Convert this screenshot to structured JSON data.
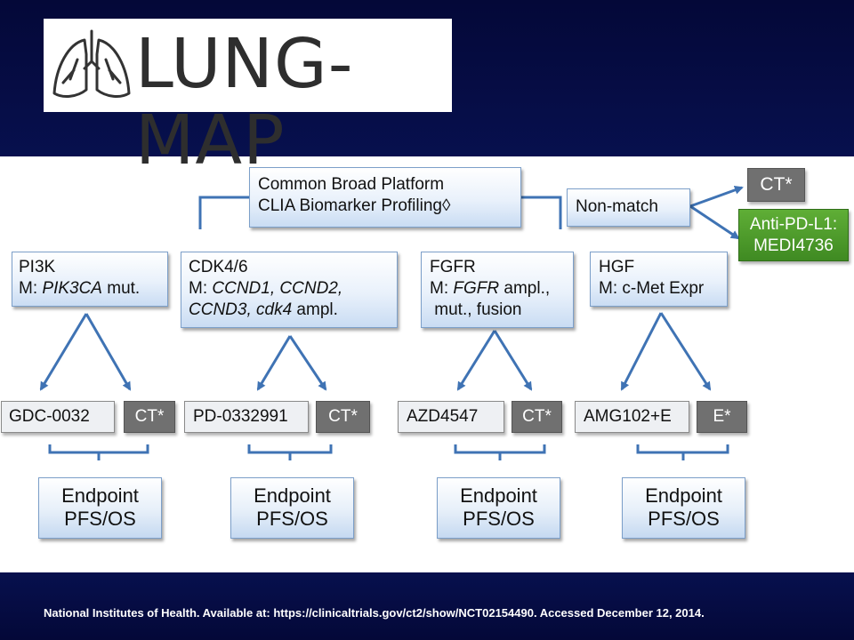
{
  "logo": {
    "text": "LUNG-MAP"
  },
  "platform": {
    "line1": "Common  Broad Platform",
    "line2": "CLIA Biomarker Profiling◊"
  },
  "nonmatch": {
    "label": "Non-match",
    "ct": "CT*",
    "anti_line1": "Anti-PD-L1:",
    "anti_line2": "MEDI4736"
  },
  "arms": [
    {
      "target": "PI3K",
      "m_prefix": "M: ",
      "m_gene": "PIK3CA",
      "m_suffix": " mut."
    },
    {
      "target": "CDK4/6",
      "m_prefix": "M: ",
      "m_genes_line1": "CCND1, CCND2,",
      "m_genes_line2a": "CCND3, cdk4",
      "m_line2_suffix": " ampl."
    },
    {
      "target": "FGFR",
      "m_prefix": "M: ",
      "m_gene": "FGFR",
      "m_suffix": " ampl.,",
      "line3": " mut., fusion"
    },
    {
      "target": "HGF",
      "m_text": "M: c-Met Expr"
    }
  ],
  "treatments": [
    {
      "drug": "GDC-0032",
      "control": "CT*"
    },
    {
      "drug": "PD-0332991",
      "control": "CT*"
    },
    {
      "drug": "AZD4547",
      "control": "CT*"
    },
    {
      "drug": "AMG102+E",
      "control": "E*"
    }
  ],
  "endpoint": {
    "line1": "Endpoint",
    "line2": "PFS/OS"
  },
  "footer": "National Institutes of Health. Available at: https://clinicaltrials.gov/ct2/show/NCT02154490. Accessed December 12, 2014.",
  "colors": {
    "header_navy": "#050a3a",
    "box_blue": "#c9dcf3",
    "control_gray": "#707070",
    "anti_green": "#4c9a2a",
    "arrow_blue": "#3f73b4"
  }
}
